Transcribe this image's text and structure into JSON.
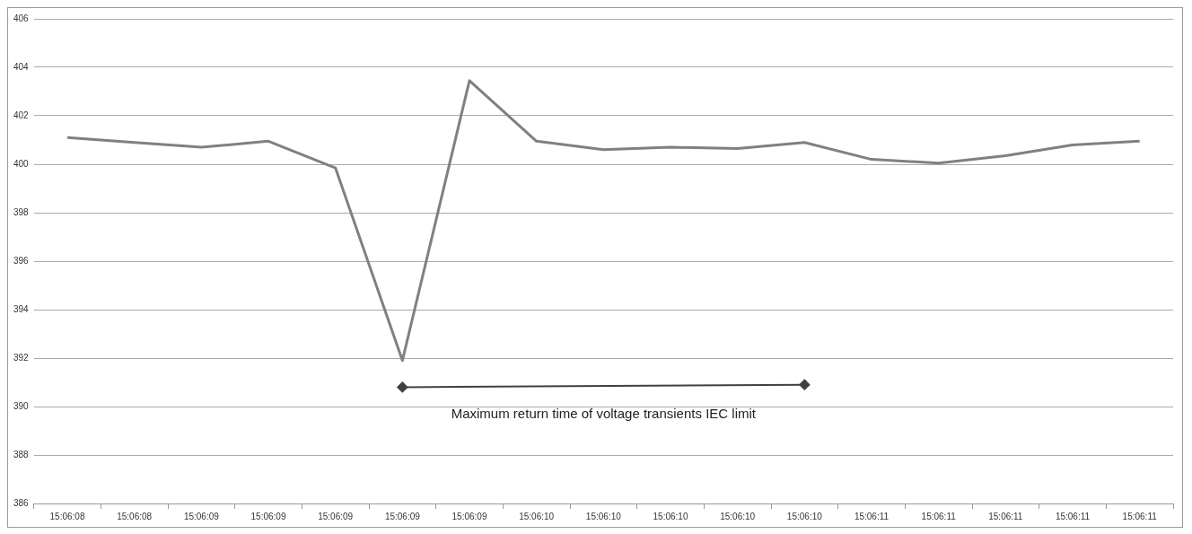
{
  "chart_data": {
    "type": "line",
    "categories": [
      "15:06:08",
      "15:06:08",
      "15:06:09",
      "15:06:09",
      "15:06:09",
      "15:06:09",
      "15:06:09",
      "15:06:10",
      "15:06:10",
      "15:06:10",
      "15:06:10",
      "15:06:10",
      "15:06:11",
      "15:06:11",
      "15:06:11",
      "15:06:11",
      "15:06:11"
    ],
    "series": [
      {
        "color": "#808080",
        "values": [
          401.1,
          400.9,
          400.7,
          400.95,
          399.85,
          391.9,
          403.45,
          400.95,
          400.6,
          400.7,
          400.65,
          400.9,
          400.2,
          400.05,
          400.35,
          400.8,
          400.95
        ]
      },
      {
        "color": "#404040",
        "marker": "diamond",
        "values": [
          null,
          null,
          null,
          null,
          null,
          390.8,
          null,
          null,
          null,
          null,
          null,
          390.9,
          null,
          null,
          null,
          null,
          null
        ]
      }
    ],
    "ylim": [
      386,
      406
    ],
    "yticks": [
      386,
      388,
      390,
      392,
      394,
      396,
      398,
      400,
      402,
      404,
      406
    ],
    "grid": "y",
    "marker": "none",
    "line_style": "solid",
    "legend": false,
    "annotations": [
      "Maximum return time of voltage transients IEC limit"
    ]
  }
}
